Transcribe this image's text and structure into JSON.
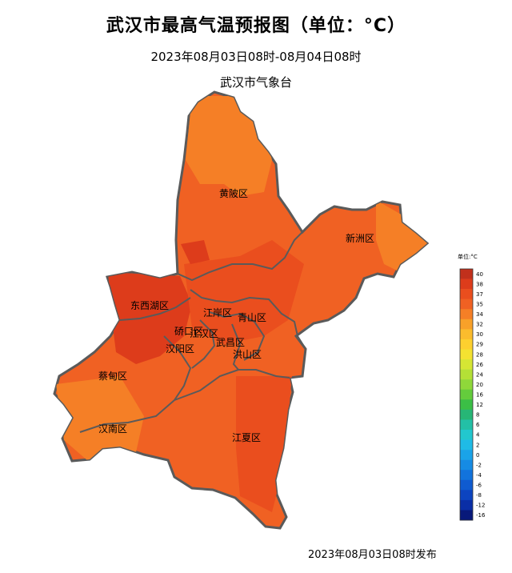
{
  "header": {
    "title": "武汉市最高气温预报图（单位：°C）",
    "period": "2023年08月03日08时-08月04日08时",
    "issuer": "武汉市气象台"
  },
  "footer": {
    "release": "2023年08月03日08时发布"
  },
  "legend": {
    "title": "单位:°C",
    "items": [
      {
        "value": "40",
        "color": "#c1301c"
      },
      {
        "value": "38",
        "color": "#dd3c1b"
      },
      {
        "value": "37",
        "color": "#ea4e1e"
      },
      {
        "value": "35",
        "color": "#f06123"
      },
      {
        "value": "34",
        "color": "#f57f26"
      },
      {
        "value": "32",
        "color": "#f8a129"
      },
      {
        "value": "30",
        "color": "#fbbc2d"
      },
      {
        "value": "29",
        "color": "#fdd02f"
      },
      {
        "value": "28",
        "color": "#f4e231"
      },
      {
        "value": "26",
        "color": "#d6e634"
      },
      {
        "value": "24",
        "color": "#b4e036"
      },
      {
        "value": "20",
        "color": "#8fd83a"
      },
      {
        "value": "16",
        "color": "#64cc3c"
      },
      {
        "value": "12",
        "color": "#3bbf46"
      },
      {
        "value": "8",
        "color": "#27b676"
      },
      {
        "value": "6",
        "color": "#23c0a6"
      },
      {
        "value": "4",
        "color": "#22c7ce"
      },
      {
        "value": "2",
        "color": "#1fbbe6"
      },
      {
        "value": "0",
        "color": "#1aa3e8"
      },
      {
        "value": "-2",
        "color": "#168be4"
      },
      {
        "value": "-4",
        "color": "#1273dc"
      },
      {
        "value": "-6",
        "color": "#0f5bd0"
      },
      {
        "value": "-8",
        "color": "#0c44c0"
      },
      {
        "value": "-12",
        "color": "#0a2ea6"
      },
      {
        "value": "-16",
        "color": "#08197a"
      }
    ]
  },
  "districts": [
    {
      "id": "huangpi",
      "name": "黄陂区"
    },
    {
      "id": "xinzhou",
      "name": "新洲区"
    },
    {
      "id": "dongxihu",
      "name": "东西湖区"
    },
    {
      "id": "jiangan",
      "name": "江岸区"
    },
    {
      "id": "qingshan",
      "name": "青山区"
    },
    {
      "id": "qiaokou",
      "name": "硚口区"
    },
    {
      "id": "jianghan",
      "name": "江汉区"
    },
    {
      "id": "wuchang",
      "name": "武昌区"
    },
    {
      "id": "hanyang",
      "name": "汉阳区"
    },
    {
      "id": "hongshan",
      "name": "洪山区"
    },
    {
      "id": "caidian",
      "name": "蔡甸区"
    },
    {
      "id": "hannan",
      "name": "汉南区"
    },
    {
      "id": "jiangxia",
      "name": "江夏区"
    }
  ],
  "colors": {
    "base_fill": "#f06123",
    "warm_fill": "#ea4e1e",
    "hot_fill": "#dd3c1b",
    "cool_fill": "#f57f26",
    "boundary": "#5a5a5a"
  }
}
